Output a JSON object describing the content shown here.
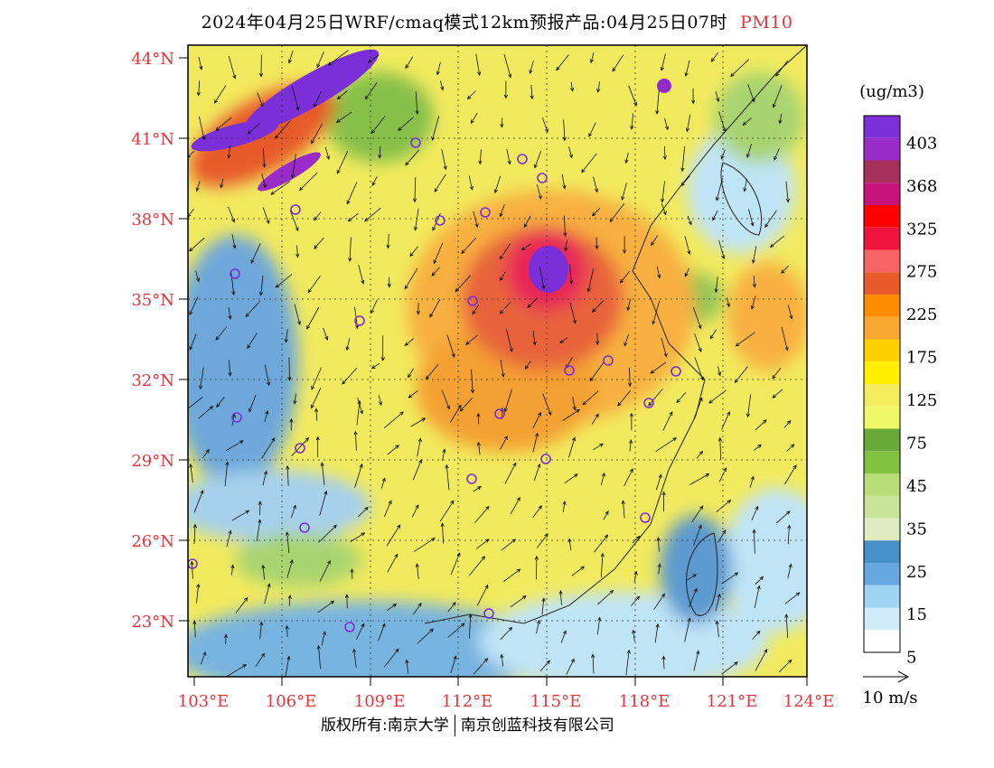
{
  "title": {
    "main": "2024年04月25日WRF/cmaq模式12km预报产品:04月25日07时",
    "variable": "PM10"
  },
  "map": {
    "lat_labels": [
      "44°N",
      "41°N",
      "38°N",
      "35°N",
      "32°N",
      "29°N",
      "26°N",
      "23°N"
    ],
    "lon_labels": [
      "103°E",
      "106°E",
      "109°E",
      "112°E",
      "115°E",
      "118°E",
      "121°E",
      "124°E"
    ],
    "label_color": "#e8333a"
  },
  "colorbar": {
    "unit": "(ug/m3)",
    "colors": [
      "#7a2fd8",
      "#9a2bc8",
      "#a6305a",
      "#c8147a",
      "#ff0000",
      "#f0143c",
      "#f86464",
      "#e85a2a",
      "#ff8c00",
      "#f8a830",
      "#ffd000",
      "#fff000",
      "#f4ec5c",
      "#eef868",
      "#6aa838",
      "#82c040",
      "#b8dc78",
      "#c8e498",
      "#e0ecc0",
      "#4890c8",
      "#68a8e0",
      "#a0d4f4",
      "#d0ecfa",
      "#ffffff"
    ],
    "labels": [
      "403",
      "368",
      "325",
      "275",
      "225",
      "175",
      "125",
      "75",
      "45",
      "35",
      "25",
      "15",
      "5"
    ]
  },
  "wind": {
    "label": "10 m/s"
  },
  "footer": {
    "left": "版权所有:南京大学",
    "right": "南京创蓝科技有限公司"
  }
}
